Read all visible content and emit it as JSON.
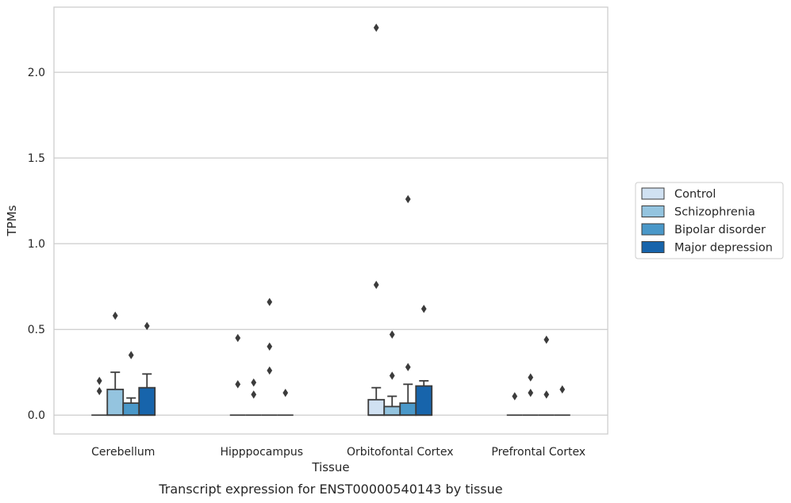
{
  "caption": "Transcript expression for ENST00000540143 by tissue",
  "chart_data": {
    "type": "box",
    "xlabel": "Tissue",
    "ylabel": "TPMs",
    "ylim": [
      -0.11,
      2.38
    ],
    "yticks": [
      0.0,
      0.5,
      1.0,
      1.5,
      2.0
    ],
    "ytick_labels": [
      "0.0",
      "0.5",
      "1.0",
      "1.5",
      "2.0"
    ],
    "grid": "horizontal",
    "legend_position": "right",
    "categories": [
      "Cerebellum",
      "Hipppocampus",
      "Orbitofontal Cortex",
      "Prefrontal Cortex"
    ],
    "series": [
      {
        "name": "Control",
        "color": "#d0e1f2",
        "boxes": [
          {
            "q1": 0,
            "median": 0,
            "q3": 0,
            "whisker_high": 0,
            "outliers": [
              0.14,
              0.2
            ]
          },
          {
            "q1": 0,
            "median": 0,
            "q3": 0,
            "whisker_high": 0,
            "outliers": [
              0.18,
              0.45
            ]
          },
          {
            "q1": 0,
            "median": 0,
            "q3": 0.09,
            "whisker_high": 0.16,
            "outliers": [
              0.76,
              2.26
            ]
          },
          {
            "q1": 0,
            "median": 0,
            "q3": 0,
            "whisker_high": 0,
            "outliers": [
              0.11
            ]
          }
        ]
      },
      {
        "name": "Schizophrenia",
        "color": "#94c4df",
        "boxes": [
          {
            "q1": 0,
            "median": 0,
            "q3": 0.15,
            "whisker_high": 0.25,
            "outliers": [
              0.58
            ]
          },
          {
            "q1": 0,
            "median": 0,
            "q3": 0,
            "whisker_high": 0,
            "outliers": [
              0.12,
              0.19
            ]
          },
          {
            "q1": 0,
            "median": 0,
            "q3": 0.05,
            "whisker_high": 0.11,
            "outliers": [
              0.23,
              0.47
            ]
          },
          {
            "q1": 0,
            "median": 0,
            "q3": 0,
            "whisker_high": 0,
            "outliers": [
              0.13,
              0.22
            ]
          }
        ]
      },
      {
        "name": "Bipolar disorder",
        "color": "#4a98c9",
        "boxes": [
          {
            "q1": 0,
            "median": 0,
            "q3": 0.07,
            "whisker_high": 0.1,
            "outliers": [
              0.35
            ]
          },
          {
            "q1": 0,
            "median": 0,
            "q3": 0,
            "whisker_high": 0,
            "outliers": [
              0.26,
              0.4,
              0.66
            ]
          },
          {
            "q1": 0,
            "median": 0,
            "q3": 0.07,
            "whisker_high": 0.18,
            "outliers": [
              0.28,
              1.26
            ]
          },
          {
            "q1": 0,
            "median": 0,
            "q3": 0,
            "whisker_high": 0,
            "outliers": [
              0.12,
              0.44
            ]
          }
        ]
      },
      {
        "name": "Major depression",
        "color": "#1764ab",
        "boxes": [
          {
            "q1": 0,
            "median": 0,
            "q3": 0.16,
            "whisker_high": 0.24,
            "outliers": [
              0.52
            ]
          },
          {
            "q1": 0,
            "median": 0,
            "q3": 0,
            "whisker_high": 0,
            "outliers": [
              0.13
            ]
          },
          {
            "q1": 0,
            "median": 0,
            "q3": 0.17,
            "whisker_high": 0.2,
            "outliers": [
              0.62
            ]
          },
          {
            "q1": 0,
            "median": 0,
            "q3": 0,
            "whisker_high": 0,
            "outliers": [
              0.15
            ]
          }
        ]
      }
    ]
  }
}
